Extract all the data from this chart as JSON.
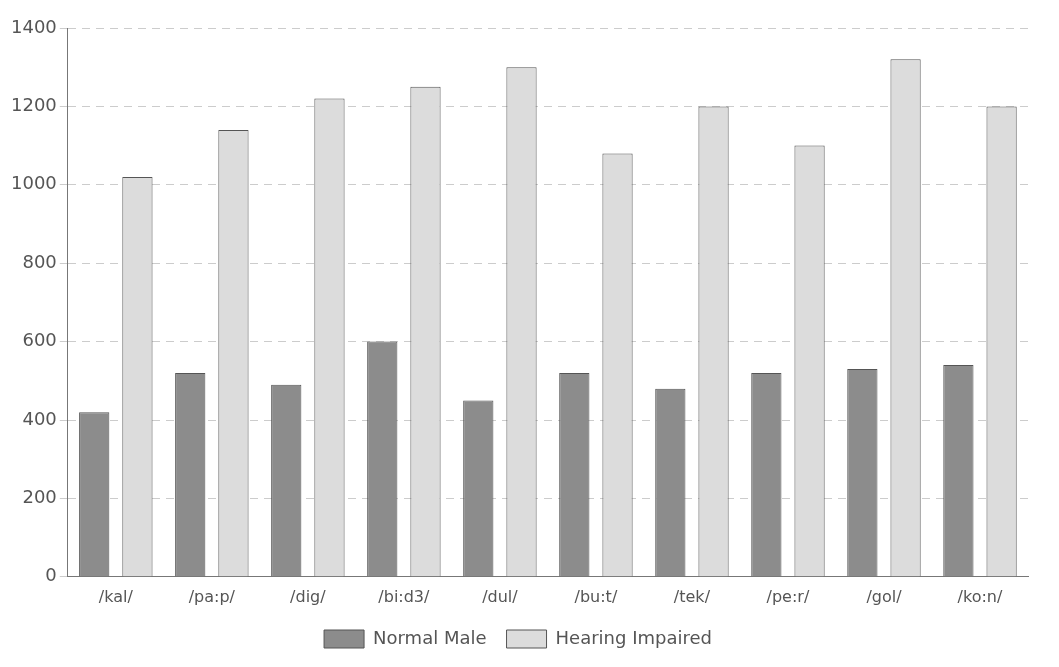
{
  "chart_data": {
    "type": "bar",
    "categories": [
      "/kal/",
      "/pa:p/",
      "/dig/",
      "/bi:d3/",
      "/dul/",
      "/bu:t/",
      "/tek/",
      "/pe:r/",
      "/gol/",
      "/ko:n/"
    ],
    "series": [
      {
        "name": "Normal Male",
        "color": "#8c8c8c",
        "values": [
          420,
          520,
          490,
          600,
          450,
          520,
          480,
          520,
          530,
          540
        ]
      },
      {
        "name": "Hearing Impaired",
        "color": "#dcdcdc",
        "values": [
          1020,
          1140,
          1220,
          1250,
          1300,
          1080,
          1200,
          1100,
          1320,
          1200
        ]
      }
    ],
    "ylim": [
      0,
      1400
    ],
    "yticks": [
      0,
      200,
      400,
      600,
      800,
      1000,
      1200,
      1400
    ],
    "grid": "y",
    "legend": "bottom"
  }
}
